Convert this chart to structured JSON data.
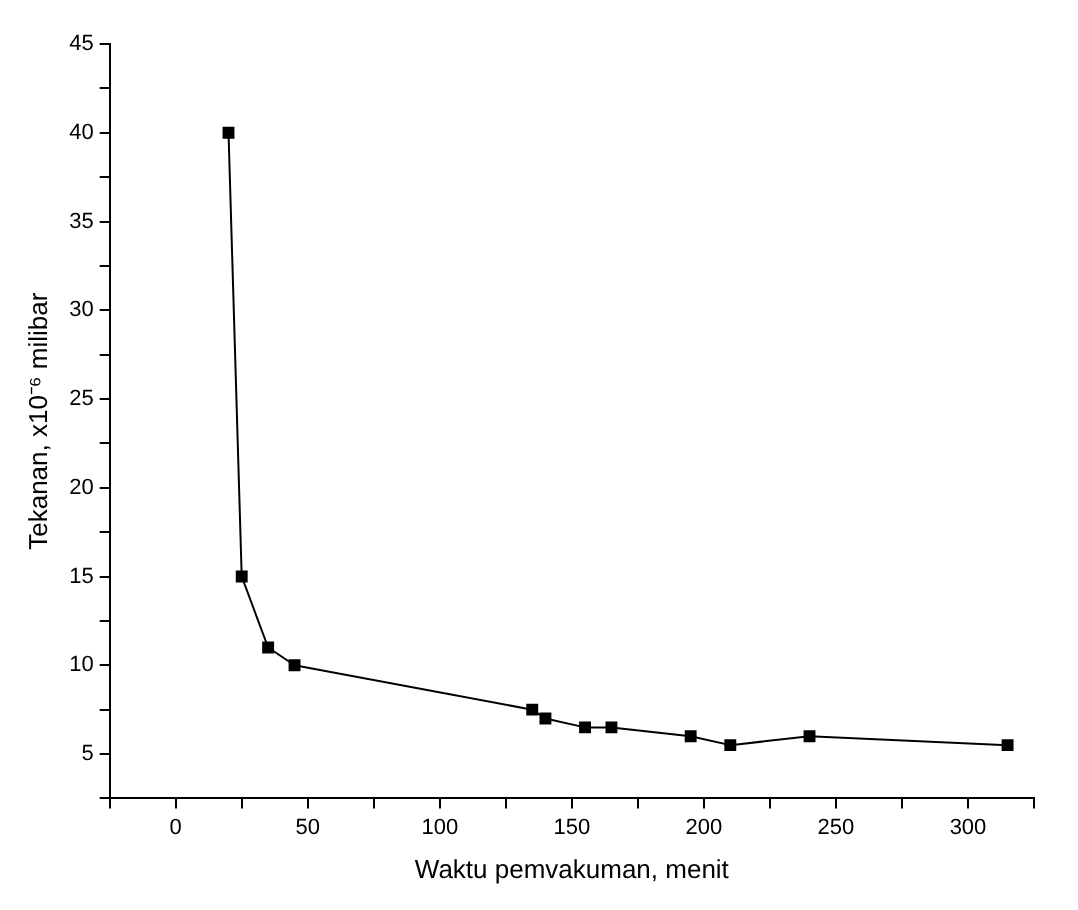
{
  "chart_data": {
    "type": "line",
    "xlabel": "Waktu pemvakuman, menit",
    "ylabel": "Tekanan, x10⁻⁶ milibar",
    "x": [
      20,
      25,
      35,
      45,
      135,
      140,
      155,
      165,
      195,
      210,
      240,
      315
    ],
    "series": [
      {
        "color": "#000000",
        "values": [
          40,
          15,
          11,
          10,
          7.5,
          7,
          6.5,
          6.5,
          6,
          5.5,
          6,
          5.5
        ]
      }
    ],
    "xlim": [
      -25,
      325
    ],
    "xticks": [
      {
        "value": -25,
        "label": null
      },
      0,
      {
        "value": 25,
        "label": null
      },
      50,
      {
        "value": 75,
        "label": null
      },
      100,
      {
        "value": 125,
        "label": null
      },
      150,
      {
        "value": 175,
        "label": null
      },
      200,
      {
        "value": 225,
        "label": null
      },
      250,
      {
        "value": 275,
        "label": null
      },
      300,
      {
        "value": 325,
        "label": null
      }
    ],
    "ylim": [
      2.5,
      45
    ],
    "yticks": [
      {
        "value": 2.5,
        "label": null
      },
      5,
      {
        "value": 7.5,
        "label": null
      },
      10,
      {
        "value": 12.5,
        "label": null
      },
      15,
      {
        "value": 17.5,
        "label": null
      },
      20,
      {
        "value": 22.5,
        "label": null
      },
      25,
      {
        "value": 27.5,
        "label": null
      },
      30,
      {
        "value": 32.5,
        "label": null
      },
      35,
      {
        "value": 37.5,
        "label": null
      },
      40,
      {
        "value": 42.5,
        "label": null
      },
      45
    ],
    "grid": false,
    "legend": false,
    "marker": "square",
    "line_style": "solid"
  }
}
